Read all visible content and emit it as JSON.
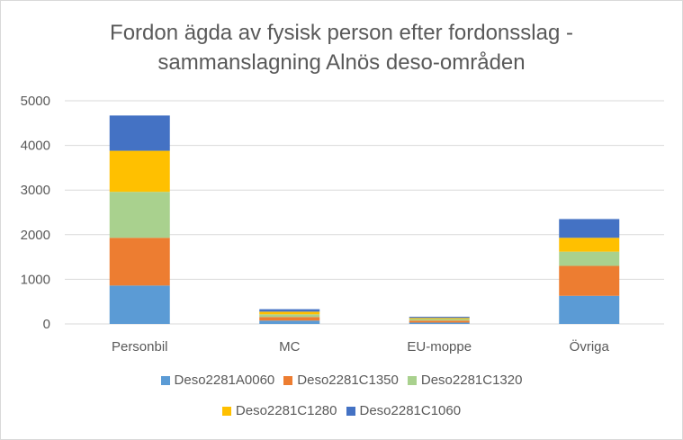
{
  "chart_data": {
    "type": "bar",
    "stacked": true,
    "title_lines": [
      "Fordon ägda av fysisk person efter fordonsslag -",
      "sammanslagning Alnös deso-områden"
    ],
    "categories": [
      "Personbil",
      "MC",
      "EU-moppe",
      "Övriga"
    ],
    "ylim": [
      0,
      5000
    ],
    "yticks": [
      "0",
      "1000",
      "2000",
      "3000",
      "4000",
      "5000"
    ],
    "ytick_values": [
      0,
      1000,
      2000,
      3000,
      4000,
      5000
    ],
    "grid": true,
    "legend_position": "bottom",
    "series": [
      {
        "name": "Deso2281A0060",
        "color": "#5b9bd5",
        "values": [
          860,
          75,
          30,
          630
        ]
      },
      {
        "name": "Deso2281C1350",
        "color": "#ed7d31",
        "values": [
          1070,
          80,
          45,
          670
        ]
      },
      {
        "name": "Deso2281C1320",
        "color": "#a9d18e",
        "values": [
          1030,
          60,
          35,
          320
        ]
      },
      {
        "name": "Deso2281C1280",
        "color": "#ffc000",
        "values": [
          920,
          60,
          25,
          310
        ]
      },
      {
        "name": "Deso2281C1060",
        "color": "#4472c4",
        "values": [
          790,
          55,
          25,
          420
        ]
      }
    ]
  }
}
